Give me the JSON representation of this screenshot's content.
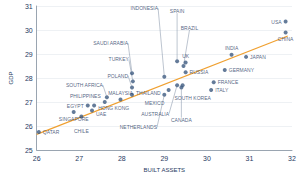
{
  "chart_data": {
    "type": "scatter",
    "x_label": "BUILT ASSETS",
    "y_label": "GDP",
    "labels": [
      "USA",
      "CHINA",
      "INDIA",
      "JAPAN",
      "GERMANY",
      "FRANCE",
      "ITALY",
      "UK",
      "SPAIN",
      "BRAZIL",
      "RUSSIA",
      "SOUTH KOREA",
      "CANADA",
      "AUSTRALIA",
      "MEXICO",
      "NETHERLANDS",
      "INDONESIA",
      "SAUDI ARABIA",
      "TURKEY",
      "POLAND",
      "THAILAND",
      "MALAYSIA",
      "SOUTH AFRICA",
      "PHILIPPINES",
      "EGYPT",
      "HONG KONG",
      "UAE",
      "SINGAPORE",
      "CHILE",
      "QATAR"
    ],
    "x": [
      31.85,
      31.85,
      30.58,
      30.92,
      30.42,
      30.16,
      30.1,
      29.5,
      29.3,
      29.45,
      29.5,
      29.43,
      29.4,
      29.3,
      29.1,
      29.0,
      29.0,
      28.24,
      28.26,
      28.24,
      28.24,
      27.97,
      27.65,
      27.6,
      27.2,
      27.35,
      27.3,
      26.87,
      27.05,
      26.05
    ],
    "values": [
      30.35,
      29.9,
      28.97,
      28.88,
      28.33,
      27.82,
      27.5,
      28.65,
      28.7,
      28.5,
      28.24,
      27.7,
      27.6,
      27.7,
      27.5,
      27.3,
      28.05,
      28.2,
      27.86,
      27.6,
      27.3,
      27.1,
      27.2,
      27.0,
      26.85,
      26.85,
      26.65,
      26.58,
      26.4,
      25.75
    ],
    "color": "#3d5a80",
    "marker": "circle",
    "trend_line": {
      "type": "line",
      "x": [
        26,
        31.9
      ],
      "values": [
        25.65,
        29.75
      ],
      "color": "#f0a030"
    },
    "xlim": [
      26,
      32
    ],
    "xticks": [
      26,
      27,
      28,
      29,
      30,
      31,
      32
    ],
    "ylim": [
      25,
      31
    ],
    "yticks": [
      25,
      26,
      27,
      28,
      29,
      30,
      31
    ],
    "grid": true
  }
}
